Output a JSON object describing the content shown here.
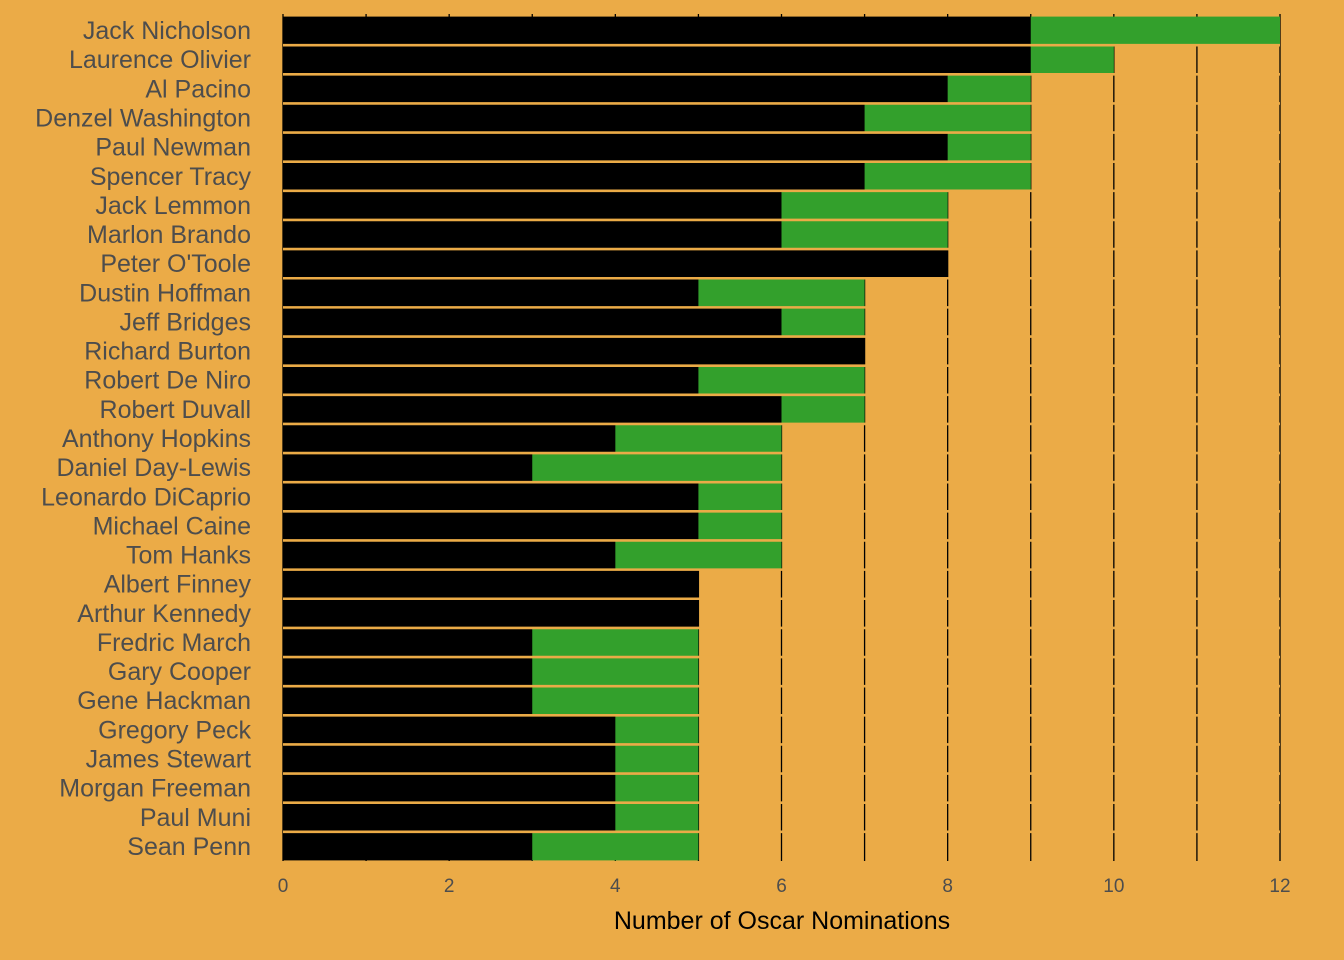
{
  "colors": {
    "background": "#ebab47",
    "base_bar": "#000000",
    "extra_bar": "#33a02c",
    "gridline": "#000000",
    "bar_separator": "#ebab47"
  },
  "chart_data": {
    "type": "bar",
    "orientation": "horizontal",
    "stacked": true,
    "title": "",
    "xlabel": "Number of Oscar Nominations",
    "ylabel": "",
    "xlim": [
      0,
      12
    ],
    "xticks": [
      "0",
      "2",
      "4",
      "6",
      "8",
      "10",
      "12"
    ],
    "grid": "vertical lines at every integer",
    "legend": "none",
    "categories": [
      "Jack Nicholson",
      "Laurence Olivier",
      "Al Pacino",
      "Denzel Washington",
      "Paul Newman",
      "Spencer Tracy",
      "Jack Lemmon",
      "Marlon Brando",
      "Peter O'Toole",
      "Dustin Hoffman",
      "Jeff Bridges",
      "Richard Burton",
      "Robert De Niro",
      "Robert Duvall",
      "Anthony Hopkins",
      "Daniel Day-Lewis",
      "Leonardo DiCaprio",
      "Michael Caine",
      "Tom Hanks",
      "Albert Finney",
      "Arthur Kennedy",
      "Fredric March",
      "Gary Cooper",
      "Gene Hackman",
      "Gregory Peck",
      "James Stewart",
      "Morgan Freeman",
      "Paul Muni",
      "Sean Penn"
    ],
    "series": [
      {
        "color": "#000000",
        "values": [
          9,
          9,
          8,
          7,
          8,
          7,
          6,
          6,
          8,
          5,
          6,
          7,
          5,
          6,
          4,
          3,
          5,
          5,
          4,
          5,
          5,
          3,
          3,
          3,
          4,
          4,
          4,
          4,
          3
        ]
      },
      {
        "color": "#33a02c",
        "values": [
          3,
          1,
          1,
          2,
          1,
          2,
          2,
          2,
          0,
          2,
          1,
          0,
          2,
          1,
          2,
          3,
          1,
          1,
          2,
          0,
          0,
          2,
          2,
          2,
          1,
          1,
          1,
          1,
          2
        ]
      }
    ]
  }
}
